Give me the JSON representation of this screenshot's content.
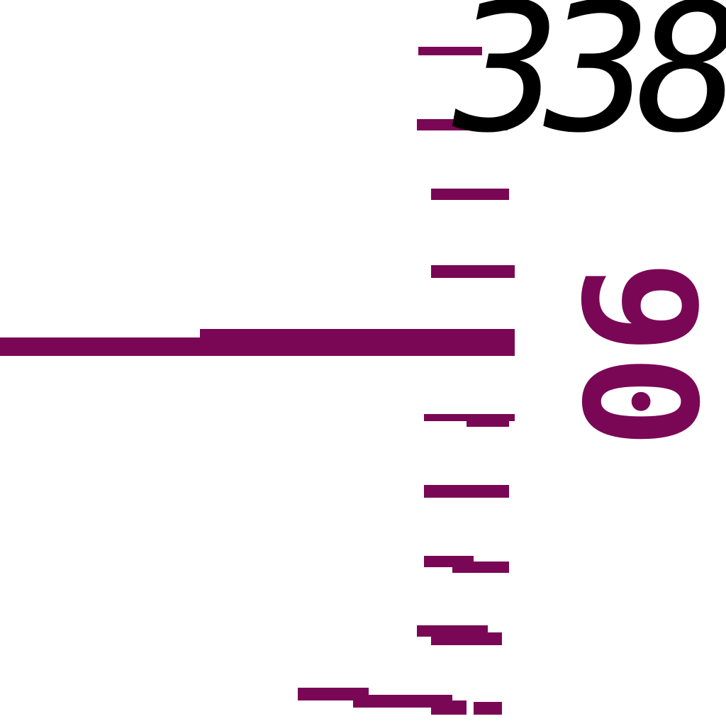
{
  "scale": {
    "top_label": "338",
    "side_label": "90",
    "colors": {
      "tick": "#7a0755",
      "label_primary": "#000000",
      "label_accent": "#7a0755"
    }
  }
}
